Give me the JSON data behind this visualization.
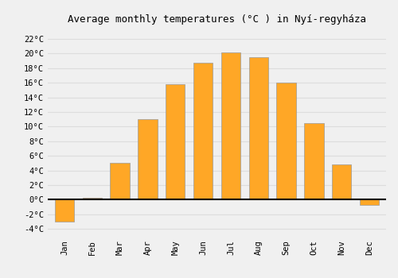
{
  "months": [
    "Jan",
    "Feb",
    "Mar",
    "Apr",
    "May",
    "Jun",
    "Jul",
    "Aug",
    "Sep",
    "Oct",
    "Nov",
    "Dec"
  ],
  "temperatures": [
    -3.0,
    0.3,
    5.0,
    11.0,
    15.8,
    18.7,
    20.1,
    19.5,
    16.0,
    10.5,
    4.8,
    -0.7
  ],
  "bar_color": "#FFA726",
  "bar_edge_color": "#999999",
  "title": "Average monthly temperatures (°C ) in Nyí-regyháza",
  "ylim": [
    -5.0,
    23.5
  ],
  "yticks": [
    -4,
    -2,
    0,
    2,
    4,
    6,
    8,
    10,
    12,
    14,
    16,
    18,
    20,
    22
  ],
  "ytick_labels": [
    "-4°C",
    "-2°C",
    "0°C",
    "2°C",
    "4°C",
    "6°C",
    "8°C",
    "10°C",
    "12°C",
    "14°C",
    "16°C",
    "18°C",
    "20°C",
    "22°C"
  ],
  "background_color": "#f0f0f0",
  "grid_color": "#dddddd",
  "title_fontsize": 9,
  "tick_fontsize": 7.5,
  "bar_width": 0.7
}
